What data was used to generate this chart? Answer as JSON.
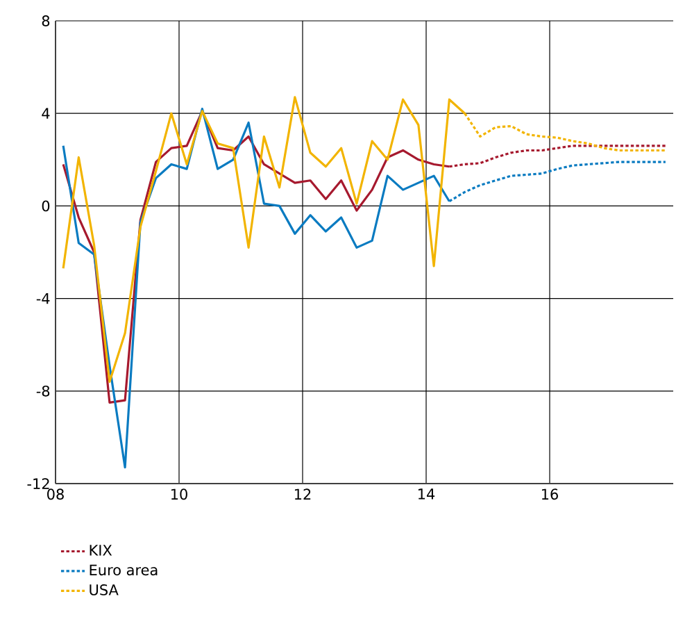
{
  "chart_data": {
    "type": "line",
    "xlim": [
      2008,
      2018
    ],
    "ylim": [
      -12,
      8
    ],
    "xticks": [
      {
        "value": 2008,
        "label": "08"
      },
      {
        "value": 2010,
        "label": "10"
      },
      {
        "value": 2012,
        "label": "12"
      },
      {
        "value": 2014,
        "label": "14"
      },
      {
        "value": 2016,
        "label": "16"
      }
    ],
    "yticks": [
      -12,
      -8,
      -4,
      0,
      4,
      8
    ],
    "grid": true,
    "legend": "bottom",
    "series": [
      {
        "color": "#a6192e",
        "line_style": "solid",
        "x": [
          2008.125,
          2008.375,
          2008.625,
          2008.875,
          2009.125,
          2009.375,
          2009.625,
          2009.875,
          2010.125,
          2010.375,
          2010.625,
          2010.875,
          2011.125,
          2011.375,
          2011.625,
          2011.875,
          2012.125,
          2012.375,
          2012.625,
          2012.875,
          2013.125,
          2013.375,
          2013.625,
          2013.875,
          2014.125,
          2014.375
        ],
        "values": [
          1.8,
          -0.5,
          -2.0,
          -8.5,
          -8.4,
          -0.6,
          1.9,
          2.5,
          2.6,
          4.1,
          2.5,
          2.4,
          3.0,
          1.8,
          1.4,
          1.0,
          1.1,
          0.3,
          1.1,
          -0.2,
          0.7,
          2.1,
          2.4,
          2.0,
          1.8,
          1.7
        ]
      },
      {
        "color": "#0a7bc1",
        "line_style": "solid",
        "x": [
          2008.125,
          2008.375,
          2008.625,
          2008.875,
          2009.125,
          2009.375,
          2009.625,
          2009.875,
          2010.125,
          2010.375,
          2010.625,
          2010.875,
          2011.125,
          2011.375,
          2011.625,
          2011.875,
          2012.125,
          2012.375,
          2012.625,
          2012.875,
          2013.125,
          2013.375,
          2013.625,
          2013.875,
          2014.125,
          2014.375
        ],
        "values": [
          2.6,
          -1.6,
          -2.1,
          -6.9,
          -11.3,
          -0.7,
          1.2,
          1.8,
          1.6,
          4.2,
          1.6,
          2.0,
          3.6,
          0.1,
          0.0,
          -1.2,
          -0.4,
          -1.1,
          -0.5,
          -1.8,
          -1.5,
          1.3,
          0.7,
          1.0,
          1.3,
          0.2
        ]
      },
      {
        "color": "#f2b400",
        "line_style": "solid",
        "x": [
          2008.125,
          2008.375,
          2008.625,
          2008.875,
          2009.125,
          2009.375,
          2009.625,
          2009.875,
          2010.125,
          2010.375,
          2010.625,
          2010.875,
          2011.125,
          2011.375,
          2011.625,
          2011.875,
          2012.125,
          2012.375,
          2012.625,
          2012.875,
          2013.125,
          2013.375,
          2013.625,
          2013.875,
          2014.125,
          2014.375,
          2014.625
        ],
        "values": [
          -2.7,
          2.1,
          -1.7,
          -7.6,
          -5.5,
          -0.9,
          1.5,
          4.0,
          1.8,
          4.1,
          2.7,
          2.5,
          -1.8,
          3.0,
          0.8,
          4.7,
          2.3,
          1.7,
          2.5,
          0.1,
          2.8,
          2.0,
          4.6,
          3.5,
          -2.6,
          4.6,
          4.0
        ]
      },
      {
        "name": "KIX",
        "color": "#a6192e",
        "line_style": "dotted",
        "x": [
          2014.375,
          2014.625,
          2014.875,
          2015.125,
          2015.375,
          2015.625,
          2015.875,
          2016.125,
          2016.375,
          2016.625,
          2016.875,
          2017.125,
          2017.375,
          2017.625,
          2017.875
        ],
        "values": [
          1.7,
          1.8,
          1.85,
          2.1,
          2.3,
          2.4,
          2.4,
          2.5,
          2.6,
          2.6,
          2.6,
          2.6,
          2.6,
          2.6,
          2.6
        ]
      },
      {
        "name": "Euro area",
        "color": "#0a7bc1",
        "line_style": "dotted",
        "x": [
          2014.375,
          2014.625,
          2014.875,
          2015.125,
          2015.375,
          2015.625,
          2015.875,
          2016.125,
          2016.375,
          2016.625,
          2016.875,
          2017.125,
          2017.375,
          2017.625,
          2017.875
        ],
        "values": [
          0.2,
          0.6,
          0.9,
          1.1,
          1.3,
          1.35,
          1.4,
          1.6,
          1.75,
          1.8,
          1.85,
          1.9,
          1.9,
          1.9,
          1.9
        ]
      },
      {
        "name": "USA",
        "color": "#f2b400",
        "line_style": "dotted",
        "x": [
          2014.625,
          2014.875,
          2015.125,
          2015.375,
          2015.625,
          2015.875,
          2016.125,
          2016.375,
          2016.625,
          2016.875,
          2017.125,
          2017.375,
          2017.625,
          2017.875
        ],
        "values": [
          4.0,
          3.0,
          3.4,
          3.45,
          3.1,
          3.0,
          2.95,
          2.8,
          2.7,
          2.5,
          2.4,
          2.4,
          2.4,
          2.4
        ]
      }
    ]
  }
}
